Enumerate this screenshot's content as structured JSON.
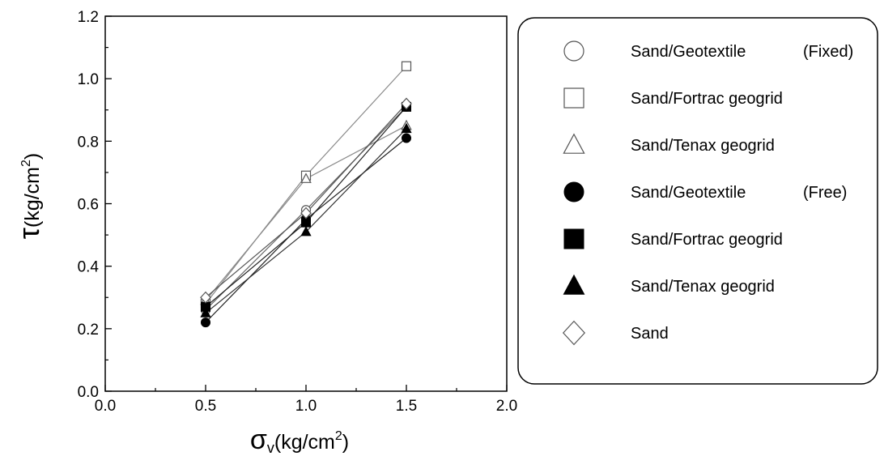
{
  "chart_data": {
    "type": "line",
    "title": "",
    "xlabel": {
      "symbol": "σ",
      "subscript": "v",
      "unit_open": "(kg/cm",
      "superscript": "2",
      "unit_close": ")"
    },
    "ylabel": {
      "symbol": "τ",
      "unit_open": "(kg/cm",
      "superscript": "2",
      "unit_close": ")"
    },
    "xlim": [
      0.0,
      2.0
    ],
    "ylim": [
      0.0,
      1.2
    ],
    "x_ticks": [
      "0.0",
      "0.5",
      "1.0",
      "1.5",
      "2.0"
    ],
    "y_ticks": [
      "0.0",
      "0.2",
      "0.4",
      "0.6",
      "0.8",
      "1.0",
      "1.2"
    ],
    "grid": false,
    "legend_position": "right",
    "x": [
      0.5,
      1.0,
      1.5
    ],
    "series": [
      {
        "name": "Sand/Geotextile",
        "note": "(Fixed)",
        "marker": "circle-open",
        "values": [
          0.26,
          0.58,
          0.91
        ]
      },
      {
        "name": "Sand/Fortrac geogrid",
        "note": "",
        "marker": "square-open",
        "values": [
          0.28,
          0.69,
          1.04
        ]
      },
      {
        "name": "Sand/Tenax geogrid",
        "note": "",
        "marker": "triangle-open",
        "values": [
          0.29,
          0.68,
          0.85
        ]
      },
      {
        "name": "Sand/Geotextile",
        "note": "(Free)",
        "marker": "circle-filled",
        "values": [
          0.22,
          0.55,
          0.81
        ]
      },
      {
        "name": "Sand/Fortrac geogrid",
        "note": "",
        "marker": "square-filled",
        "values": [
          0.27,
          0.54,
          0.91
        ]
      },
      {
        "name": "Sand/Tenax geogrid",
        "note": "",
        "marker": "triangle-filled",
        "values": [
          0.25,
          0.51,
          0.84
        ]
      },
      {
        "name": "Sand",
        "note": "",
        "marker": "diamond-open",
        "values": [
          0.3,
          0.57,
          0.92
        ]
      }
    ]
  }
}
